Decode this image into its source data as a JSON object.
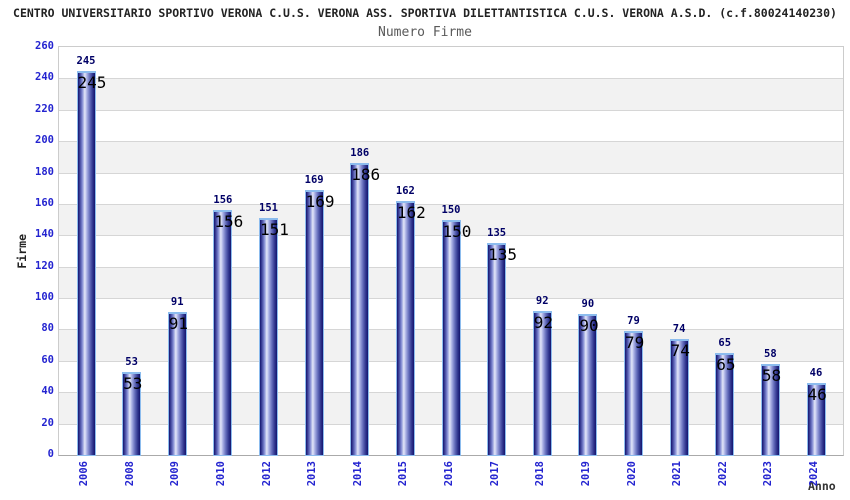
{
  "chart_data": {
    "type": "bar",
    "title": "CENTRO UNIVERSITARIO SPORTIVO VERONA C.U.S. VERONA ASS. SPORTIVA DILETTANTISTICA C.U.S. VERONA A.S.D. (c.f.80024140230)",
    "subtitle": "Numero Firme",
    "xlabel": "Anno",
    "ylabel": "Firme",
    "categories": [
      "2006",
      "2008",
      "2009",
      "2010",
      "2012",
      "2013",
      "2014",
      "2015",
      "2016",
      "2017",
      "2018",
      "2019",
      "2020",
      "2021",
      "2022",
      "2023",
      "2024"
    ],
    "values": [
      245,
      53,
      91,
      156,
      151,
      169,
      186,
      162,
      150,
      135,
      92,
      90,
      79,
      74,
      65,
      58,
      46
    ],
    "ylim": [
      0,
      260
    ],
    "ytick_step": 20,
    "grid": true,
    "legend_position": "none",
    "colors": {
      "bar_dark": "#14146e",
      "bar_light": "#e3e7f9",
      "bar_outline": "#8cbcee",
      "axis_label_blue": "#2424d0",
      "value_label_navy": "#000066",
      "band_gray": "#f2f2f2",
      "gridline": "#d6d6d6",
      "title_color": "#222222",
      "subtitle_color": "#5a5a5a"
    }
  }
}
